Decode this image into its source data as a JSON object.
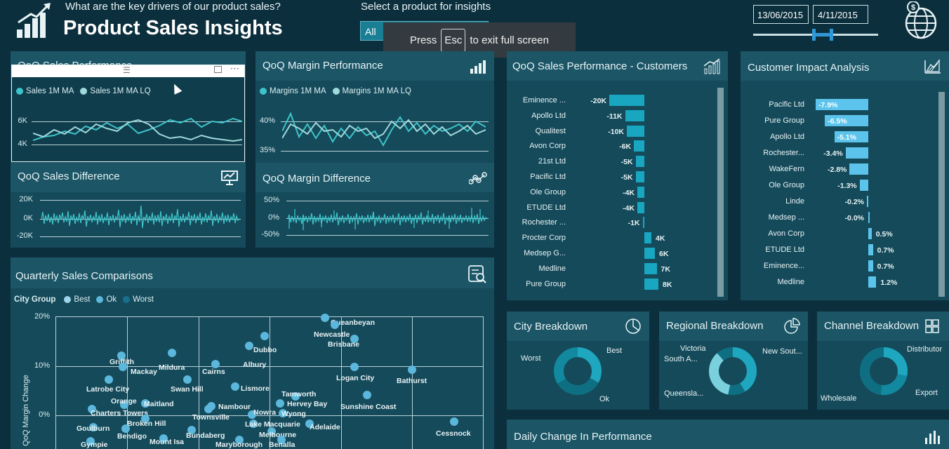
{
  "header": {
    "question": "What are the key drivers of our product sales?",
    "title": "Product Sales Insights"
  },
  "selector": {
    "label": "Select a product for insights",
    "value": "All"
  },
  "fullscreen_toast": {
    "press": "Press",
    "key": "Esc",
    "rest": "to exit full screen"
  },
  "dates": {
    "start": "13/06/2015",
    "end": "4/11/2015"
  },
  "icons": {
    "logo": "bar-chart-growth-icon",
    "globe": "globe-dollar-icon"
  },
  "panels": {
    "qoq_sales": {
      "title": "QoQ Sales Performance",
      "legend": [
        "Sales 1M MA",
        "Sales 1M MA LQ"
      ],
      "y_ticks": [
        "6K",
        "4K"
      ]
    },
    "qoq_margin": {
      "title": "QoQ Margin Performance",
      "legend": [
        "Margins 1M MA",
        "Margins 1M MA LQ"
      ],
      "y_ticks": [
        "40%",
        "35%"
      ]
    },
    "sales_diff": {
      "title": "QoQ Sales Difference",
      "y_ticks": [
        "20K",
        "0K",
        "-20K"
      ]
    },
    "margin_diff": {
      "title": "QoQ Margin Difference",
      "y_ticks": [
        "50%",
        "0%",
        "-50%"
      ]
    },
    "customers": {
      "title": "QoQ Sales Performance - Customers"
    },
    "impact": {
      "title": "Customer Impact Analysis"
    },
    "quarterly": {
      "title": "Quarterly Sales Comparisons",
      "legend_title": "City Group",
      "legend": [
        "Best",
        "Ok",
        "Worst"
      ],
      "y_axis_label": "QoQ Margin Change",
      "y_ticks": [
        "20%",
        "10%",
        "0%"
      ]
    },
    "city": {
      "title": "City Breakdown",
      "labels": [
        "Best",
        "Worst",
        "Ok"
      ]
    },
    "regional": {
      "title": "Regional Breakdown",
      "labels": [
        "Victoria",
        "South A...",
        "New Sout...",
        "Queensla..."
      ]
    },
    "channel": {
      "title": "Channel Breakdown",
      "labels": [
        "Distributor",
        "Wholesale",
        "Export"
      ]
    },
    "daily": {
      "title": "Daily Change In Performance"
    }
  },
  "colors": {
    "bg": "#0c2f3d",
    "panel": "#154a5a",
    "accent": "#19a6c1",
    "light": "#5cc4ec",
    "line_a": "#3ec3c9",
    "line_b": "#9fd9dc"
  },
  "chart_data": [
    {
      "type": "bar",
      "title": "QoQ Sales Performance - Customers",
      "categories": [
        "Eminence ...",
        "Apollo Ltd",
        "Qualitest",
        "Avon Corp",
        "21st Ltd",
        "Pacific Ltd",
        "Ole Group",
        "ETUDE Ltd",
        "Rochester ...",
        "Procter Corp",
        "Medsep G...",
        "Medline",
        "Pure Group"
      ],
      "values": [
        -20,
        -11,
        -10,
        -6,
        -5,
        -5,
        -4,
        -4,
        -1,
        4,
        6,
        7,
        8
      ],
      "value_labels": [
        "-20K",
        "-11K",
        "-10K",
        "-6K",
        "-5K",
        "-5K",
        "-4K",
        "-4K",
        "-1K",
        "4K",
        "6K",
        "7K",
        "8K"
      ]
    },
    {
      "type": "bar",
      "title": "Customer Impact Analysis",
      "categories": [
        "Pacific Ltd",
        "Pure Group",
        "Apollo Ltd",
        "Rochester...",
        "WakeFern",
        "Ole Group",
        "Linde",
        "Medsep ...",
        "Avon Corp",
        "ETUDE Ltd",
        "Eminence...",
        "Medline"
      ],
      "values": [
        -7.9,
        -6.5,
        -5.1,
        -3.4,
        -2.8,
        -1.3,
        -0.2,
        -0.0,
        0.5,
        0.7,
        0.7,
        1.2
      ],
      "value_labels": [
        "-7.9%",
        "-6.5%",
        "-5.1%",
        "-3.4%",
        "-2.8%",
        "-1.3%",
        "-0.2%",
        "-0.0%",
        "0.5%",
        "0.7%",
        "0.7%",
        "1.2%"
      ]
    },
    {
      "type": "scatter",
      "title": "Quarterly Sales Comparisons",
      "ylabel": "QoQ Margin Change",
      "ylim": [
        -5,
        20
      ],
      "points": [
        {
          "label": "Queanbeyan",
          "y": 17.5
        },
        {
          "label": "Newcastle",
          "y": 16.5
        },
        {
          "label": "Brisbane",
          "y": 15
        },
        {
          "label": "Dubbo",
          "y": 13.8
        },
        {
          "label": "Griffith",
          "y": 10.8
        },
        {
          "label": "Mildura",
          "y": 10.2
        },
        {
          "label": "Mackay",
          "y": 9.5
        },
        {
          "label": "Cairns",
          "y": 9.2
        },
        {
          "label": "Albury",
          "y": 10.5
        },
        {
          "label": "Logan City",
          "y": 8.5
        },
        {
          "label": "Bathurst",
          "y": 7.8
        },
        {
          "label": "Latrobe City",
          "y": 7.0
        },
        {
          "label": "Swan Hill",
          "y": 7.0
        },
        {
          "label": "Lismore",
          "y": 6.8
        },
        {
          "label": "Tamworth",
          "y": 4.8
        },
        {
          "label": "Hervey Bay",
          "y": 3.5
        },
        {
          "label": "Sunshine Coast",
          "y": 3.2
        },
        {
          "label": "Orange",
          "y": 3.5
        },
        {
          "label": "Maitland",
          "y": 3.0
        },
        {
          "label": "Nambour",
          "y": 2.7
        },
        {
          "label": "Nowra",
          "y": 1.7
        },
        {
          "label": "Wyong",
          "y": 1.7
        },
        {
          "label": "Charters Towers",
          "y": 1.5
        },
        {
          "label": "Townsville",
          "y": 0.8
        },
        {
          "label": "Broken Hill",
          "y": -0.5
        },
        {
          "label": "Lake Macquarie",
          "y": -0.7
        },
        {
          "label": "Adelaide",
          "y": -0.8
        },
        {
          "label": "Goulburn",
          "y": -1.5
        },
        {
          "label": "Cessnock",
          "y": -2.5
        },
        {
          "label": "Bendigo",
          "y": -2.8
        },
        {
          "label": "Bundaberg",
          "y": -2.8
        },
        {
          "label": "Melbourne",
          "y": -2.5
        },
        {
          "label": "Mount Isa",
          "y": -3.7
        },
        {
          "label": "Gympie",
          "y": -4.5
        },
        {
          "label": "Maryborough",
          "y": -4.5
        },
        {
          "label": "Benalla",
          "y": -4.3
        }
      ]
    }
  ]
}
